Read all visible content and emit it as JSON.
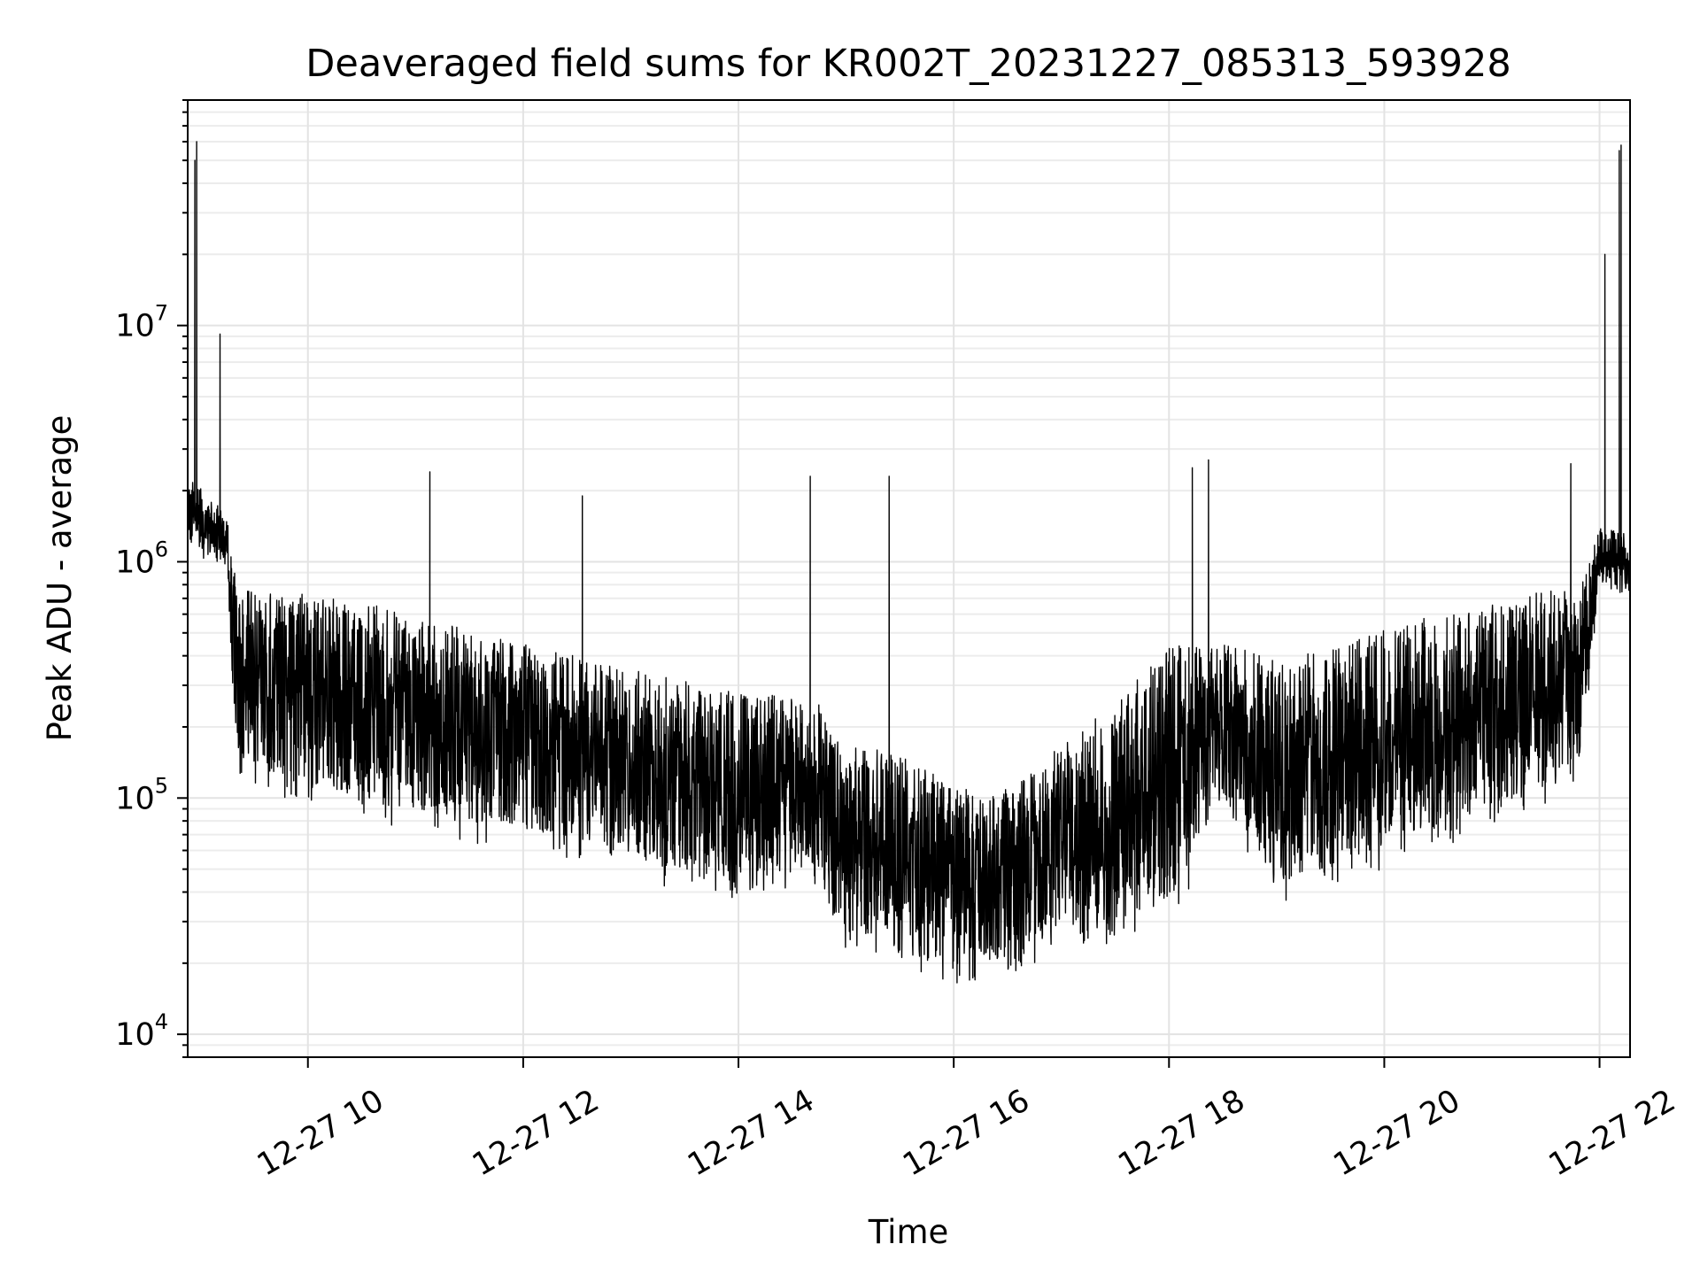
{
  "chart_data": {
    "type": "line",
    "title": "Deaveraged field sums for KR002T_20231227_085313_593928",
    "xlabel": "Time",
    "ylabel": "Peak ADU - average",
    "yscale": "log",
    "ylim": [
      8000,
      90000000
    ],
    "xlim": [
      "2023-12-27 08:53",
      "2023-12-27 22:17"
    ],
    "grid": true,
    "legend": "none",
    "line_color": "#000000",
    "x_ticks": [
      {
        "value": "2023-12-27 10:00",
        "label": "12-27 10"
      },
      {
        "value": "2023-12-27 12:00",
        "label": "12-27 12"
      },
      {
        "value": "2023-12-27 14:00",
        "label": "12-27 14"
      },
      {
        "value": "2023-12-27 16:00",
        "label": "12-27 16"
      },
      {
        "value": "2023-12-27 18:00",
        "label": "12-27 18"
      },
      {
        "value": "2023-12-27 20:00",
        "label": "12-27 20"
      },
      {
        "value": "2023-12-27 22:00",
        "label": "12-27 22"
      }
    ],
    "y_ticks": [
      {
        "value": 10000,
        "base": "10",
        "exp": "4"
      },
      {
        "value": 100000,
        "base": "10",
        "exp": "5"
      },
      {
        "value": 1000000,
        "base": "10",
        "exp": "6"
      },
      {
        "value": 10000000,
        "base": "10",
        "exp": "7"
      }
    ],
    "envelope": {
      "x": [
        "2023-12-27 08:53",
        "2023-12-27 09:15",
        "2023-12-27 09:20",
        "2023-12-27 10:00",
        "2023-12-27 11:00",
        "2023-12-27 12:00",
        "2023-12-27 13:00",
        "2023-12-27 14:00",
        "2023-12-27 14:40",
        "2023-12-27 15:00",
        "2023-12-27 15:30",
        "2023-12-27 16:00",
        "2023-12-27 16:30",
        "2023-12-27 17:00",
        "2023-12-27 17:30",
        "2023-12-27 18:00",
        "2023-12-27 18:30",
        "2023-12-27 19:00",
        "2023-12-27 19:30",
        "2023-12-27 20:00",
        "2023-12-27 20:30",
        "2023-12-27 21:00",
        "2023-12-27 21:30",
        "2023-12-27 21:50",
        "2023-12-27 22:00",
        "2023-12-27 22:17"
      ],
      "upper": [
        2300000,
        1600000,
        800000,
        750000,
        600000,
        450000,
        350000,
        280000,
        280000,
        170000,
        160000,
        110000,
        110000,
        170000,
        250000,
        450000,
        450000,
        400000,
        430000,
        520000,
        600000,
        680000,
        750000,
        800000,
        1400000,
        1300000
      ],
      "lower": [
        1100000,
        900000,
        120000,
        90000,
        70000,
        60000,
        45000,
        35000,
        45000,
        22000,
        19000,
        16000,
        17000,
        20000,
        23000,
        25000,
        90000,
        35000,
        40000,
        50000,
        60000,
        75000,
        90000,
        110000,
        800000,
        700000
      ]
    },
    "spikes": [
      {
        "x": "2023-12-27 08:57",
        "y": 50000000
      },
      {
        "x": "2023-12-27 08:58",
        "y": 60000000
      },
      {
        "x": "2023-12-27 09:11",
        "y": 9200000
      },
      {
        "x": "2023-12-27 11:08",
        "y": 2400000
      },
      {
        "x": "2023-12-27 12:33",
        "y": 1900000
      },
      {
        "x": "2023-12-27 14:40",
        "y": 2300000
      },
      {
        "x": "2023-12-27 15:24",
        "y": 2300000
      },
      {
        "x": "2023-12-27 18:13",
        "y": 2500000
      },
      {
        "x": "2023-12-27 18:22",
        "y": 2700000
      },
      {
        "x": "2023-12-27 21:44",
        "y": 2600000
      },
      {
        "x": "2023-12-27 22:03",
        "y": 20000000
      },
      {
        "x": "2023-12-27 22:11",
        "y": 55000000
      },
      {
        "x": "2023-12-27 22:12",
        "y": 58000000
      }
    ]
  }
}
